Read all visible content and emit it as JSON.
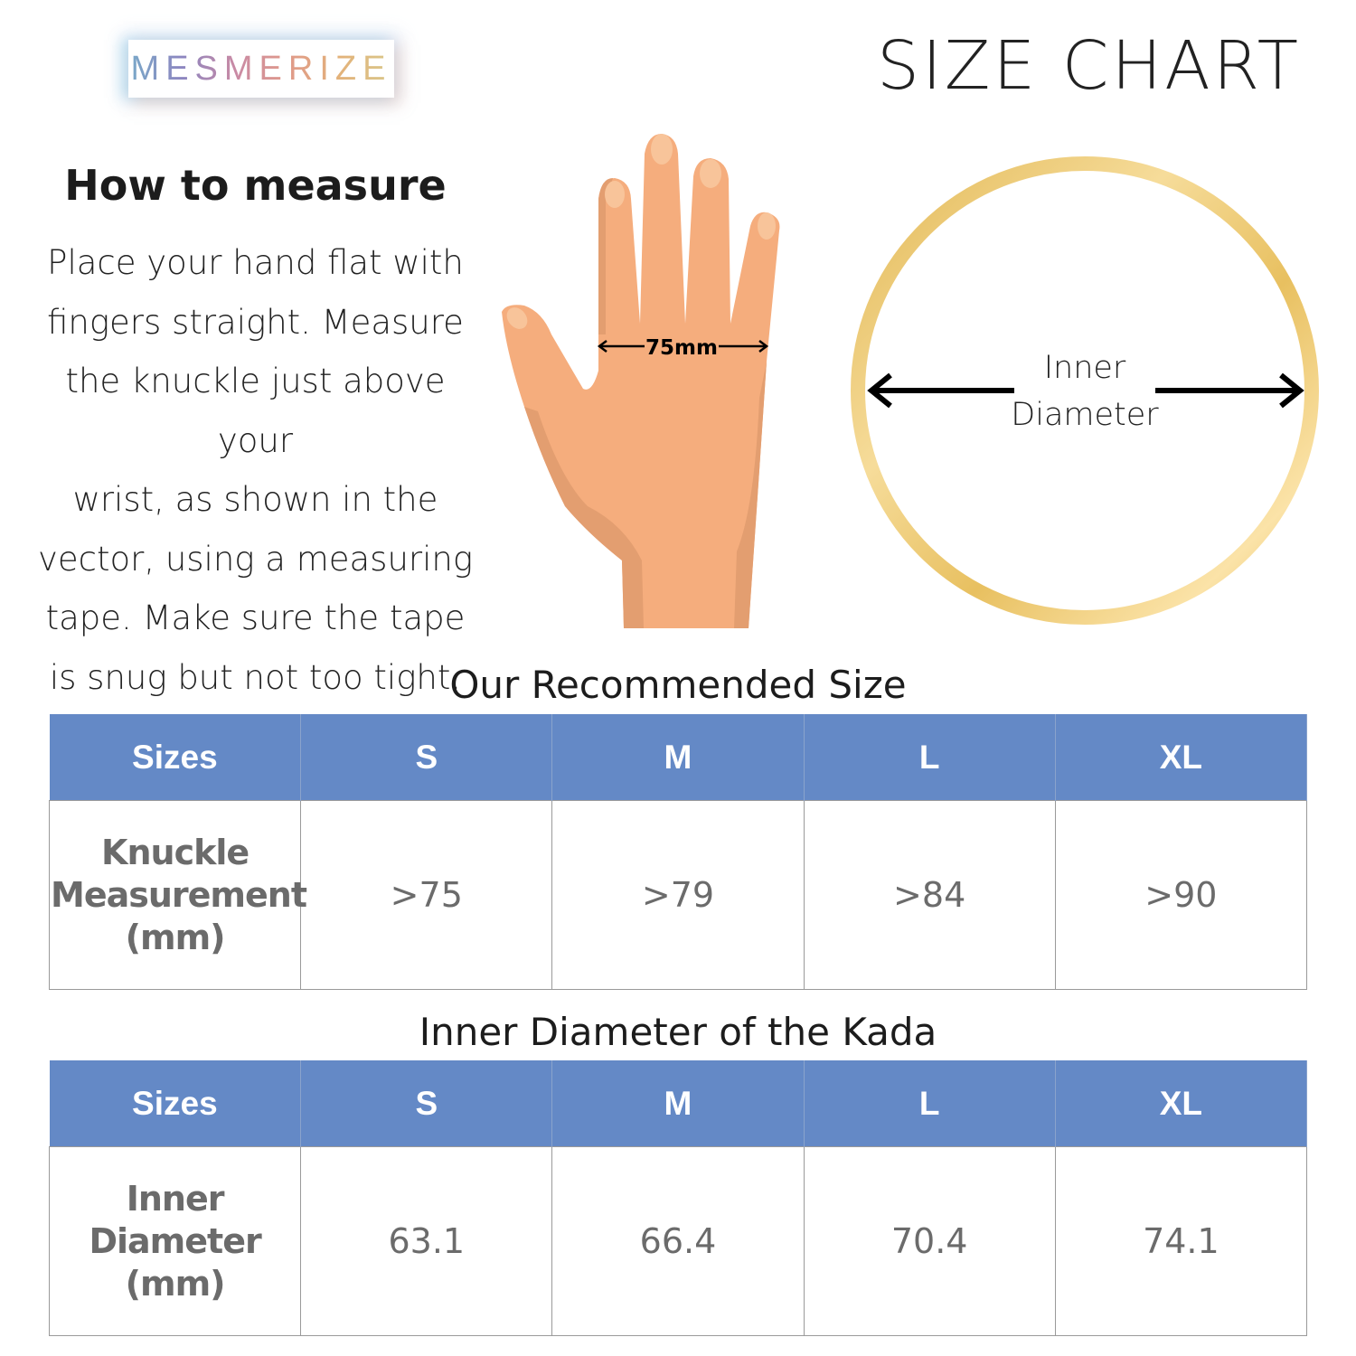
{
  "brand": {
    "logo_text": "MESMERIZE"
  },
  "header": {
    "title": "SIZE CHART"
  },
  "how_to": {
    "heading": "How to measure",
    "lines": [
      "Place your hand flat with",
      "fingers straight. Measure",
      "the knuckle just above your",
      "wrist, as shown in the",
      "vector, using a measuring",
      "tape. Make sure the tape",
      "is snug but not too tight."
    ]
  },
  "hand_diagram": {
    "label": "75mm"
  },
  "ring_diagram": {
    "label_line1": "Inner",
    "label_line2": "Diameter",
    "color": "#e8c260"
  },
  "recommended": {
    "title": "Our Recommended Size",
    "headers": [
      "Sizes",
      "S",
      "M",
      "L",
      "XL"
    ],
    "row_label": [
      "Knuckle",
      "Measurement",
      "(mm)"
    ],
    "values": [
      ">75",
      ">79",
      ">84",
      ">90"
    ]
  },
  "kada": {
    "title": "Inner Diameter of the Kada",
    "headers": [
      "Sizes",
      "S",
      "M",
      "L",
      "XL"
    ],
    "row_label": [
      "Inner",
      "Diameter",
      "(mm)"
    ],
    "values": [
      "63.1",
      "66.4",
      "70.4",
      "74.1"
    ]
  },
  "colors": {
    "header_bg": "#6489c6",
    "cell_text": "#6b6b6b",
    "skin": "#f5ad7d",
    "skin_shadow": "#e39e70"
  }
}
